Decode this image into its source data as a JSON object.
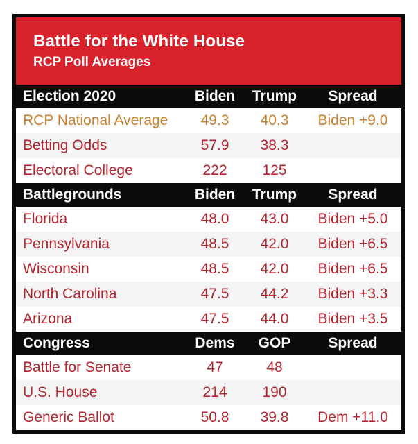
{
  "banner": {
    "title": "Battle for the White House",
    "subtitle": "RCP Poll Averages"
  },
  "colors": {
    "banner_red": "#d7222b",
    "row_text_red": "#b3242e",
    "highlight_orange": "#c8802f",
    "alt_row_gray": "#f4f4f4",
    "frame_black": "#0b0b0b",
    "header_text_white": "#ffffff"
  },
  "chart_data": {
    "type": "table",
    "title": "Battle for the White House",
    "subtitle": "RCP Poll Averages",
    "sections": [
      {
        "name": "Election 2020",
        "columns": [
          "Biden",
          "Trump",
          "Spread"
        ],
        "rows": [
          {
            "label": "RCP National Average",
            "col1": "49.3",
            "col2": "40.3",
            "spread": "Biden +9.0"
          },
          {
            "label": "Betting Odds",
            "col1": "57.9",
            "col2": "38.3",
            "spread": ""
          },
          {
            "label": "Electoral College",
            "col1": "222",
            "col2": "125",
            "spread": ""
          }
        ]
      },
      {
        "name": "Battlegrounds",
        "columns": [
          "Biden",
          "Trump",
          "Spread"
        ],
        "rows": [
          {
            "label": "Florida",
            "col1": "48.0",
            "col2": "43.0",
            "spread": "Biden +5.0"
          },
          {
            "label": "Pennsylvania",
            "col1": "48.5",
            "col2": "42.0",
            "spread": "Biden +6.5"
          },
          {
            "label": "Wisconsin",
            "col1": "48.5",
            "col2": "42.0",
            "spread": "Biden +6.5"
          },
          {
            "label": "North Carolina",
            "col1": "47.5",
            "col2": "44.2",
            "spread": "Biden +3.3"
          },
          {
            "label": "Arizona",
            "col1": "47.5",
            "col2": "44.0",
            "spread": "Biden +3.5"
          }
        ]
      },
      {
        "name": "Congress",
        "columns": [
          "Dems",
          "GOP",
          "Spread"
        ],
        "rows": [
          {
            "label": "Battle for Senate",
            "col1": "47",
            "col2": "48",
            "spread": ""
          },
          {
            "label": "U.S. House",
            "col1": "214",
            "col2": "190",
            "spread": ""
          },
          {
            "label": "Generic Ballot",
            "col1": "50.8",
            "col2": "39.8",
            "spread": "Dem +11.0"
          }
        ]
      }
    ]
  }
}
